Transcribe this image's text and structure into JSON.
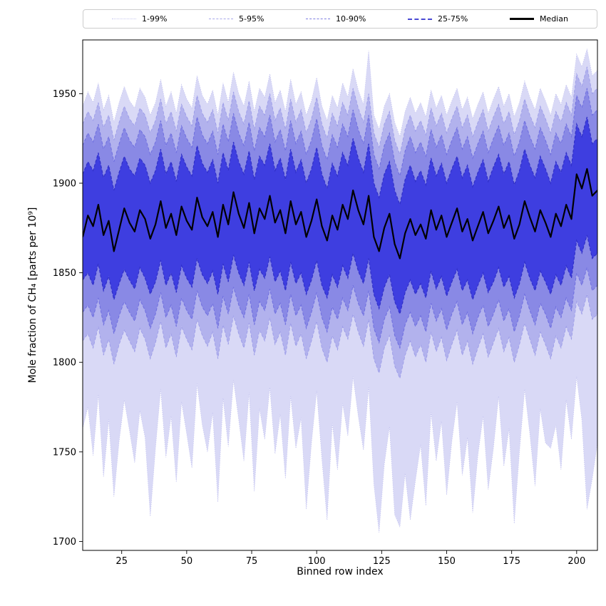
{
  "figure": {
    "xlabel": "Binned row index",
    "ylabel": "Mole fraction of CH₄ [parts per 10⁹]",
    "background": "#ffffff"
  },
  "legend": {
    "items": [
      {
        "label": "1-99%",
        "color": "#c8c8f0",
        "line": "dotted",
        "width": 1
      },
      {
        "label": "5-95%",
        "color": "#a8a8ea",
        "line": "dashed",
        "width": 1
      },
      {
        "label": "10-90%",
        "color": "#7e7ee2",
        "line": "dashed",
        "width": 1
      },
      {
        "label": "25-75%",
        "color": "#4a4ad4",
        "line": "dashed",
        "width": 2
      },
      {
        "label": "Median",
        "color": "#000000",
        "line": "solid",
        "width": 3
      }
    ]
  },
  "chart_data": {
    "type": "area",
    "title": "",
    "xlabel": "Binned row index",
    "ylabel": "Mole fraction of CH₄ [parts per 10⁹]",
    "xlim": [
      10,
      208
    ],
    "ylim": [
      1695,
      1980
    ],
    "xticks": [
      25,
      50,
      75,
      100,
      125,
      150,
      175,
      200
    ],
    "yticks": [
      1700,
      1750,
      1800,
      1850,
      1900,
      1950
    ],
    "grid": false,
    "legend_position": "top",
    "median_color": "#000000",
    "x": [
      10,
      12,
      14,
      16,
      18,
      20,
      22,
      24,
      26,
      28,
      30,
      32,
      34,
      36,
      38,
      40,
      42,
      44,
      46,
      48,
      50,
      52,
      54,
      56,
      58,
      60,
      62,
      64,
      66,
      68,
      70,
      72,
      74,
      76,
      78,
      80,
      82,
      84,
      86,
      88,
      90,
      92,
      94,
      96,
      98,
      100,
      102,
      104,
      106,
      108,
      110,
      112,
      114,
      116,
      118,
      120,
      122,
      124,
      126,
      128,
      130,
      132,
      134,
      136,
      138,
      140,
      142,
      144,
      146,
      148,
      150,
      152,
      154,
      156,
      158,
      160,
      162,
      164,
      166,
      168,
      170,
      172,
      174,
      176,
      178,
      180,
      182,
      184,
      186,
      188,
      190,
      192,
      194,
      196,
      198,
      200,
      202,
      204,
      206,
      208
    ],
    "series": {
      "p1": [
        1763,
        1775,
        1748,
        1782,
        1736,
        1768,
        1725,
        1756,
        1779,
        1762,
        1744,
        1773,
        1758,
        1714,
        1752,
        1785,
        1747,
        1770,
        1733,
        1778,
        1760,
        1741,
        1788,
        1765,
        1750,
        1772,
        1722,
        1780,
        1753,
        1790,
        1768,
        1745,
        1783,
        1728,
        1774,
        1757,
        1786,
        1749,
        1771,
        1735,
        1781,
        1752,
        1769,
        1718,
        1755,
        1784,
        1746,
        1712,
        1766,
        1740,
        1777,
        1759,
        1792,
        1770,
        1751,
        1786,
        1732,
        1705,
        1743,
        1764,
        1715,
        1708,
        1738,
        1712,
        1734,
        1754,
        1720,
        1772,
        1745,
        1767,
        1726,
        1756,
        1778,
        1737,
        1758,
        1716,
        1748,
        1770,
        1729,
        1752,
        1781,
        1742,
        1763,
        1710,
        1750,
        1785,
        1760,
        1731,
        1774,
        1755,
        1752,
        1765,
        1740,
        1779,
        1757,
        1792,
        1768,
        1718,
        1735,
        1755
      ],
      "p5": [
        1812,
        1816,
        1808,
        1820,
        1804,
        1813,
        1799,
        1810,
        1818,
        1812,
        1806,
        1819,
        1813,
        1802,
        1811,
        1823,
        1808,
        1816,
        1803,
        1820,
        1813,
        1807,
        1824,
        1815,
        1809,
        1817,
        1802,
        1821,
        1810,
        1826,
        1816,
        1808,
        1822,
        1804,
        1818,
        1812,
        1825,
        1810,
        1817,
        1804,
        1822,
        1809,
        1816,
        1802,
        1812,
        1823,
        1808,
        1800,
        1815,
        1807,
        1820,
        1813,
        1827,
        1817,
        1809,
        1824,
        1802,
        1794,
        1808,
        1815,
        1798,
        1791,
        1804,
        1812,
        1803,
        1810,
        1800,
        1817,
        1806,
        1814,
        1801,
        1810,
        1818,
        1804,
        1812,
        1799,
        1808,
        1816,
        1803,
        1811,
        1819,
        1806,
        1814,
        1800,
        1810,
        1822,
        1813,
        1804,
        1817,
        1810,
        1802,
        1815,
        1808,
        1820,
        1813,
        1834,
        1827,
        1838,
        1824,
        1827
      ],
      "p10": [
        1828,
        1832,
        1825,
        1836,
        1821,
        1829,
        1816,
        1826,
        1834,
        1828,
        1823,
        1835,
        1829,
        1819,
        1827,
        1839,
        1825,
        1832,
        1820,
        1836,
        1829,
        1824,
        1840,
        1831,
        1826,
        1833,
        1819,
        1837,
        1827,
        1842,
        1832,
        1825,
        1838,
        1821,
        1834,
        1829,
        1841,
        1827,
        1833,
        1821,
        1838,
        1826,
        1832,
        1819,
        1828,
        1839,
        1825,
        1817,
        1831,
        1824,
        1836,
        1829,
        1843,
        1833,
        1826,
        1840,
        1819,
        1811,
        1824,
        1831,
        1815,
        1808,
        1821,
        1828,
        1820,
        1826,
        1817,
        1833,
        1823,
        1830,
        1818,
        1827,
        1834,
        1821,
        1828,
        1816,
        1825,
        1832,
        1820,
        1827,
        1835,
        1823,
        1830,
        1817,
        1826,
        1838,
        1829,
        1821,
        1833,
        1827,
        1819,
        1831,
        1825,
        1836,
        1829,
        1850,
        1843,
        1853,
        1840,
        1843
      ],
      "p25": [
        1846,
        1850,
        1843,
        1855,
        1840,
        1848,
        1835,
        1844,
        1852,
        1846,
        1841,
        1853,
        1847,
        1838,
        1845,
        1857,
        1843,
        1850,
        1839,
        1854,
        1847,
        1842,
        1858,
        1849,
        1844,
        1851,
        1838,
        1855,
        1845,
        1860,
        1850,
        1843,
        1856,
        1840,
        1852,
        1847,
        1859,
        1845,
        1851,
        1840,
        1856,
        1844,
        1850,
        1838,
        1846,
        1857,
        1843,
        1836,
        1849,
        1842,
        1854,
        1847,
        1861,
        1851,
        1844,
        1858,
        1838,
        1830,
        1842,
        1849,
        1834,
        1827,
        1839,
        1846,
        1838,
        1844,
        1836,
        1851,
        1841,
        1848,
        1837,
        1845,
        1852,
        1840,
        1846,
        1835,
        1843,
        1850,
        1839,
        1845,
        1853,
        1842,
        1848,
        1836,
        1844,
        1856,
        1847,
        1840,
        1851,
        1845,
        1838,
        1849,
        1843,
        1854,
        1847,
        1868,
        1861,
        1871,
        1858,
        1861
      ],
      "median": [
        1870,
        1882,
        1876,
        1888,
        1871,
        1879,
        1862,
        1874,
        1886,
        1878,
        1873,
        1885,
        1880,
        1869,
        1877,
        1890,
        1875,
        1883,
        1871,
        1887,
        1879,
        1874,
        1892,
        1881,
        1876,
        1884,
        1870,
        1888,
        1877,
        1895,
        1883,
        1875,
        1889,
        1872,
        1886,
        1880,
        1893,
        1878,
        1885,
        1872,
        1890,
        1877,
        1884,
        1870,
        1879,
        1891,
        1876,
        1868,
        1882,
        1874,
        1888,
        1880,
        1896,
        1885,
        1877,
        1893,
        1870,
        1862,
        1875,
        1883,
        1866,
        1858,
        1872,
        1880,
        1871,
        1877,
        1869,
        1885,
        1874,
        1882,
        1870,
        1878,
        1886,
        1873,
        1880,
        1868,
        1876,
        1884,
        1872,
        1879,
        1887,
        1875,
        1882,
        1869,
        1877,
        1890,
        1881,
        1873,
        1885,
        1878,
        1870,
        1883,
        1876,
        1888,
        1880,
        1905,
        1897,
        1908,
        1893,
        1896
      ],
      "p75": [
        1905,
        1912,
        1907,
        1917,
        1903,
        1910,
        1896,
        1906,
        1915,
        1908,
        1904,
        1914,
        1910,
        1900,
        1907,
        1919,
        1905,
        1912,
        1901,
        1916,
        1909,
        1904,
        1921,
        1911,
        1906,
        1913,
        1900,
        1917,
        1907,
        1923,
        1912,
        1905,
        1918,
        1902,
        1915,
        1910,
        1922,
        1907,
        1914,
        1902,
        1919,
        1906,
        1913,
        1900,
        1908,
        1920,
        1905,
        1897,
        1911,
        1904,
        1917,
        1910,
        1925,
        1914,
        1906,
        1922,
        1900,
        1892,
        1905,
        1912,
        1896,
        1888,
        1902,
        1910,
        1901,
        1907,
        1899,
        1914,
        1904,
        1911,
        1900,
        1908,
        1915,
        1903,
        1910,
        1898,
        1906,
        1913,
        1901,
        1909,
        1916,
        1905,
        1912,
        1899,
        1907,
        1919,
        1910,
        1903,
        1915,
        1908,
        1900,
        1912,
        1906,
        1917,
        1910,
        1933,
        1926,
        1937,
        1922,
        1925
      ],
      "p90": [
        1921,
        1928,
        1923,
        1933,
        1919,
        1926,
        1912,
        1922,
        1931,
        1924,
        1920,
        1930,
        1926,
        1916,
        1923,
        1935,
        1921,
        1928,
        1917,
        1932,
        1925,
        1920,
        1937,
        1927,
        1922,
        1929,
        1916,
        1933,
        1923,
        1939,
        1928,
        1921,
        1934,
        1918,
        1931,
        1926,
        1938,
        1923,
        1930,
        1918,
        1935,
        1922,
        1929,
        1916,
        1924,
        1936,
        1921,
        1913,
        1927,
        1920,
        1933,
        1926,
        1941,
        1930,
        1922,
        1938,
        1916,
        1908,
        1921,
        1928,
        1912,
        1904,
        1918,
        1926,
        1917,
        1923,
        1915,
        1930,
        1920,
        1927,
        1916,
        1924,
        1931,
        1919,
        1926,
        1914,
        1922,
        1929,
        1917,
        1925,
        1932,
        1921,
        1928,
        1915,
        1923,
        1935,
        1926,
        1919,
        1931,
        1924,
        1916,
        1928,
        1922,
        1933,
        1926,
        1949,
        1942,
        1953,
        1938,
        1941
      ],
      "p95": [
        1933,
        1940,
        1935,
        1945,
        1931,
        1938,
        1924,
        1934,
        1943,
        1936,
        1932,
        1942,
        1938,
        1928,
        1935,
        1947,
        1933,
        1940,
        1929,
        1944,
        1937,
        1932,
        1949,
        1939,
        1934,
        1941,
        1928,
        1945,
        1935,
        1951,
        1940,
        1933,
        1946,
        1930,
        1943,
        1938,
        1950,
        1935,
        1942,
        1930,
        1947,
        1934,
        1941,
        1928,
        1936,
        1948,
        1933,
        1925,
        1939,
        1932,
        1945,
        1938,
        1953,
        1942,
        1934,
        1950,
        1928,
        1920,
        1933,
        1940,
        1924,
        1916,
        1930,
        1938,
        1929,
        1935,
        1927,
        1942,
        1932,
        1939,
        1928,
        1936,
        1943,
        1931,
        1938,
        1926,
        1934,
        1941,
        1929,
        1937,
        1944,
        1933,
        1940,
        1927,
        1935,
        1947,
        1938,
        1931,
        1943,
        1936,
        1928,
        1940,
        1934,
        1945,
        1938,
        1961,
        1954,
        1965,
        1950,
        1953
      ],
      "p99": [
        1943,
        1951,
        1945,
        1956,
        1941,
        1949,
        1934,
        1945,
        1954,
        1946,
        1942,
        1953,
        1948,
        1938,
        1945,
        1958,
        1943,
        1951,
        1939,
        1955,
        1947,
        1942,
        1960,
        1949,
        1944,
        1952,
        1938,
        1956,
        1945,
        1962,
        1950,
        1943,
        1957,
        1940,
        1953,
        1948,
        1961,
        1945,
        1952,
        1940,
        1958,
        1944,
        1951,
        1938,
        1946,
        1959,
        1943,
        1935,
        1949,
        1942,
        1956,
        1948,
        1964,
        1952,
        1944,
        1974,
        1938,
        1930,
        1943,
        1950,
        1934,
        1926,
        1940,
        1948,
        1939,
        1945,
        1937,
        1952,
        1942,
        1949,
        1938,
        1946,
        1953,
        1941,
        1948,
        1936,
        1944,
        1951,
        1939,
        1947,
        1954,
        1943,
        1950,
        1937,
        1945,
        1957,
        1948,
        1941,
        1953,
        1946,
        1938,
        1950,
        1944,
        1955,
        1948,
        1972,
        1965,
        1975,
        1960,
        1963
      ]
    },
    "bands": [
      {
        "label": "1-99%",
        "lower": "p1",
        "upper": "p99",
        "fill": "#d9d9f6",
        "edge": "#bdbdee",
        "dash": "1 2",
        "edge_width": 0.8
      },
      {
        "label": "5-95%",
        "lower": "p5",
        "upper": "p95",
        "fill": "#b2b2ed",
        "edge": "#9c9ce8",
        "dash": "4 2.5",
        "edge_width": 0.9
      },
      {
        "label": "10-90%",
        "lower": "p10",
        "upper": "p90",
        "fill": "#8989e5",
        "edge": "#6e6edf",
        "dash": "4 2.5",
        "edge_width": 1
      },
      {
        "label": "25-75%",
        "lower": "p25",
        "upper": "p75",
        "fill": "#3e3ee0",
        "edge": "#3030c8",
        "dash": "4 2.5",
        "edge_width": 1.2
      }
    ]
  }
}
